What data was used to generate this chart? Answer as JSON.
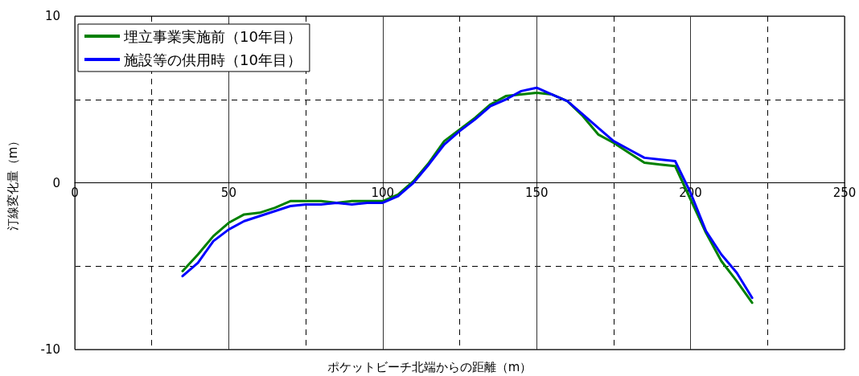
{
  "chart_data": {
    "type": "line",
    "xlabel": "ポケットビーチ北端からの距離（m）",
    "ylabel": "汀線変化量（m）",
    "x": [
      35,
      40,
      45,
      50,
      55,
      60,
      65,
      70,
      75,
      80,
      85,
      90,
      95,
      100,
      105,
      110,
      115,
      120,
      125,
      130,
      135,
      140,
      145,
      150,
      155,
      160,
      165,
      170,
      175,
      180,
      185,
      190,
      195,
      200,
      205,
      210,
      215,
      220
    ],
    "series": [
      {
        "name": "埋立事業実施前（10年目）",
        "color": "#008000",
        "values": [
          -5.3,
          -4.3,
          -3.2,
          -2.4,
          -1.9,
          -1.8,
          -1.5,
          -1.1,
          -1.1,
          -1.1,
          -1.2,
          -1.1,
          -1.1,
          -1.1,
          -0.7,
          0.1,
          1.2,
          2.5,
          3.2,
          3.9,
          4.7,
          5.2,
          5.3,
          5.4,
          5.3,
          4.9,
          4.0,
          2.9,
          2.4,
          1.8,
          1.2,
          1.1,
          1.0,
          -1.0,
          -3.0,
          -4.7,
          -5.9,
          -7.2
        ]
      },
      {
        "name": "施設等の供用時（10年目）",
        "color": "#0000ff",
        "values": [
          -5.6,
          -4.8,
          -3.5,
          -2.8,
          -2.3,
          -2.0,
          -1.7,
          -1.4,
          -1.3,
          -1.3,
          -1.2,
          -1.3,
          -1.2,
          -1.2,
          -0.8,
          0.0,
          1.1,
          2.3,
          3.1,
          3.8,
          4.6,
          5.0,
          5.5,
          5.7,
          5.3,
          4.9,
          4.1,
          3.3,
          2.5,
          2.0,
          1.5,
          1.4,
          1.3,
          -0.6,
          -2.9,
          -4.3,
          -5.4,
          -6.9
        ]
      }
    ],
    "xlim": [
      0,
      250
    ],
    "xticks": [
      0,
      {
        "value": 25,
        "label": null
      },
      50,
      {
        "value": 75,
        "label": null
      },
      100,
      {
        "value": 125,
        "label": null
      },
      150,
      {
        "value": 175,
        "label": null
      },
      200,
      {
        "value": 225,
        "label": null
      },
      250
    ],
    "ylim": [
      -10,
      10
    ],
    "yticks": [
      -10,
      {
        "value": -5,
        "label": null
      },
      0,
      {
        "value": 5,
        "label": null
      },
      10
    ],
    "grid": true,
    "legend": "top left",
    "marker": "none",
    "line_style": "solid"
  }
}
